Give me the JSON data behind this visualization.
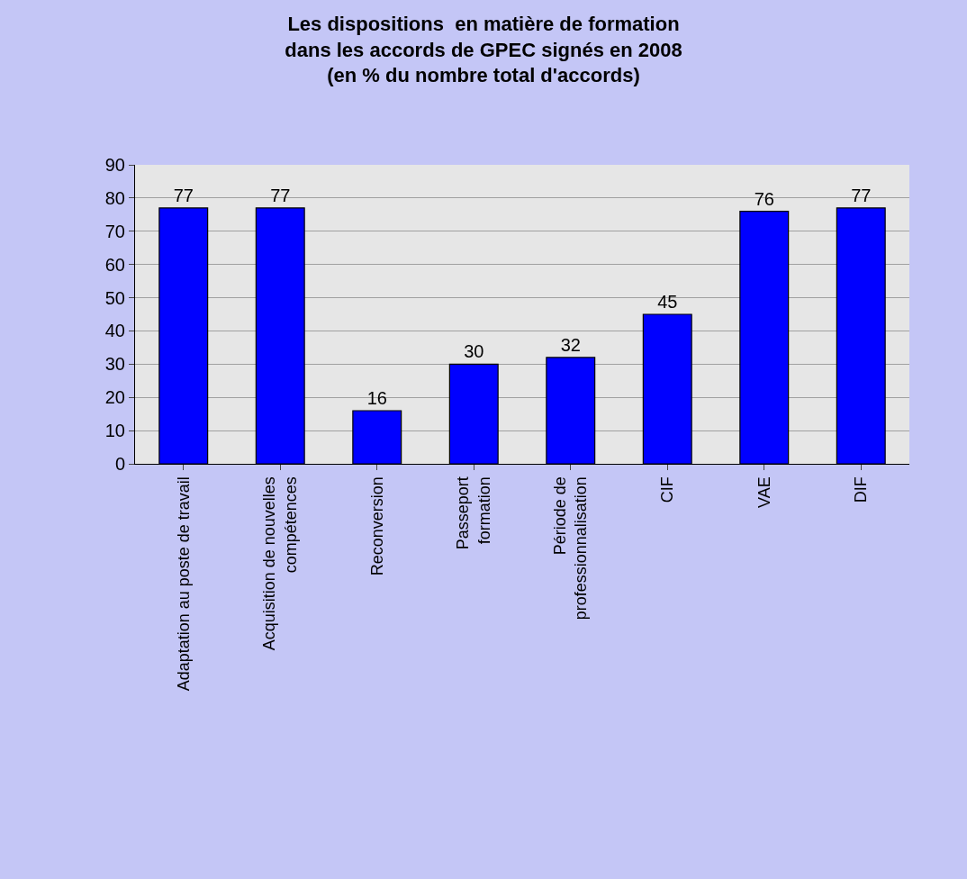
{
  "chart_data": {
    "type": "bar",
    "title": "Les dispositions  en matière de formation\ndans les accords de GPEC signés en 2008\n(en % du nombre total d'accords)",
    "categories": [
      "Adaptation au poste de travail",
      "Acquisition de nouvelles\ncompétences",
      "Reconversion",
      "Passeport\nformation",
      "Période de\nprofessionnalisation",
      "CIF",
      "VAE",
      "DIF"
    ],
    "values": [
      77,
      77,
      16,
      30,
      32,
      45,
      76,
      77
    ],
    "color": "#0000ff",
    "ylim": [
      0,
      90
    ],
    "yticks": [
      0,
      10,
      20,
      30,
      40,
      50,
      60,
      70,
      80,
      90
    ],
    "grid": "y",
    "data_labels": true
  }
}
